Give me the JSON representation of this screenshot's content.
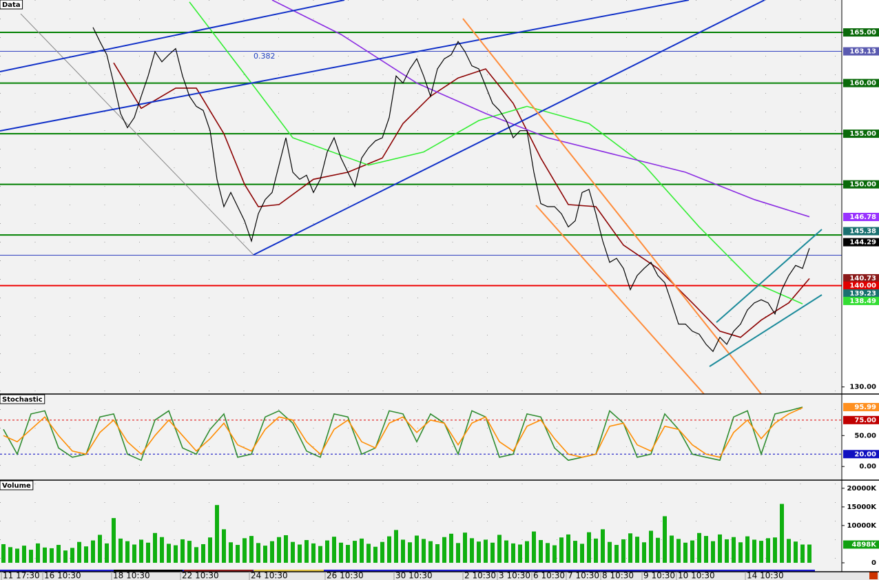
{
  "chart_data": [
    {
      "type": "line",
      "title": "Data",
      "fib_label": "0.382",
      "categories": [
        "11 17:30",
        null,
        null,
        null,
        null,
        null,
        "16 10:30",
        null,
        null,
        null,
        null,
        null,
        null,
        null,
        null,
        null,
        "18 10:30",
        null,
        null,
        null,
        null,
        null,
        null,
        null,
        null,
        null,
        "22 10:30",
        null,
        null,
        null,
        null,
        null,
        null,
        null,
        null,
        null,
        "24 10:30",
        null,
        null,
        null,
        null,
        null,
        null,
        null,
        null,
        null,
        null,
        "26 10:30",
        null,
        null,
        null,
        null,
        null,
        null,
        null,
        null,
        null,
        "30 10:30",
        null,
        null,
        null,
        null,
        null,
        null,
        null,
        null,
        null,
        "2 10:30",
        null,
        null,
        null,
        null,
        "3 10:30",
        null,
        null,
        null,
        null,
        "6 10:30",
        null,
        null,
        null,
        null,
        "7 10:30",
        null,
        null,
        null,
        null,
        "8 10:30",
        null,
        null,
        null,
        null,
        null,
        "9 10:30",
        null,
        null,
        null,
        null,
        "10 10:30",
        null,
        null,
        null,
        null,
        null,
        null,
        null,
        null,
        null,
        "14 10:30",
        null,
        null,
        null,
        null,
        null,
        null,
        null,
        null,
        null
      ],
      "ylim": [
        129.3,
        168.2
      ],
      "yticks": [
        {
          "value": 165,
          "label": "165.00"
        },
        {
          "value": 160,
          "label": "160.00"
        },
        {
          "value": 155,
          "label": "155.00"
        },
        {
          "value": 150,
          "label": "150.00"
        },
        {
          "value": 130,
          "label": "130.00"
        }
      ],
      "series": [
        {
          "color": "#000000",
          "values": [
            null,
            null,
            null,
            null,
            null,
            null,
            null,
            null,
            null,
            null,
            null,
            null,
            null,
            165.5,
            164.1,
            162.8,
            160.0,
            157.0,
            155.6,
            156.6,
            158.7,
            160.7,
            163.1,
            162.1,
            162.8,
            163.4,
            160.7,
            158.7,
            157.7,
            157.3,
            155.3,
            150.5,
            147.8,
            149.2,
            147.8,
            146.4,
            144.4,
            147.1,
            148.5,
            149.2,
            151.9,
            154.6,
            151.2,
            150.5,
            150.9,
            149.2,
            150.5,
            153.2,
            154.6,
            152.6,
            151.2,
            149.8,
            152.6,
            153.6,
            154.3,
            154.6,
            156.6,
            160.7,
            160.0,
            161.4,
            162.4,
            160.7,
            158.7,
            161.4,
            162.4,
            162.8,
            164.1,
            163.1,
            161.7,
            161.4,
            159.7,
            158.0,
            157.3,
            156.3,
            154.6,
            155.3,
            155.3,
            151.2,
            148.1,
            147.8,
            147.8,
            147.1,
            145.8,
            146.4,
            149.2,
            149.5,
            147.1,
            144.4,
            142.3,
            142.7,
            141.7,
            139.6,
            141.0,
            141.7,
            142.3,
            141.0,
            140.3,
            138.3,
            136.2,
            136.2,
            135.5,
            135.2,
            134.2,
            133.5,
            134.9,
            134.2,
            135.5,
            136.2,
            137.6,
            138.3,
            138.6,
            138.3,
            137.2,
            139.6,
            141.0,
            142.0,
            141.7,
            143.7
          ]
        },
        {
          "color": "#8b0000",
          "x": [
            16,
            20,
            25,
            28,
            32,
            35,
            37,
            40,
            45,
            50,
            55,
            58,
            62,
            66,
            70,
            74,
            78,
            82,
            86,
            90,
            95,
            100,
            104,
            107,
            110,
            114,
            117
          ],
          "values": [
            162,
            157.5,
            159.5,
            159.5,
            155,
            150,
            147.8,
            148,
            150.5,
            151.2,
            152.6,
            156,
            158.7,
            160.5,
            161.4,
            158,
            152.6,
            148,
            147.8,
            144,
            141.7,
            138.3,
            135.5,
            134.9,
            136.6,
            138.3,
            140.7
          ]
        },
        {
          "color": "#33ee33",
          "x": [
            27,
            36,
            42,
            53,
            61,
            69,
            76,
            85,
            93,
            101,
            109,
            116
          ],
          "values": [
            168,
            160,
            154.6,
            151.9,
            153.2,
            156.3,
            157.7,
            156,
            151.9,
            145.8,
            140.3,
            138.2
          ]
        },
        {
          "color": "#8a2be2",
          "x": [
            39,
            49,
            60,
            70,
            79,
            89,
            99,
            109,
            117
          ],
          "values": [
            168.2,
            164.8,
            160,
            157,
            154.6,
            152.9,
            151.2,
            148.5,
            146.8
          ]
        }
      ],
      "levels": [
        {
          "value": 165,
          "color": "#008000"
        },
        {
          "value": 160,
          "color": "#008000"
        },
        {
          "value": 155,
          "color": "#008000"
        },
        {
          "value": 150,
          "color": "#008000"
        },
        {
          "value": 145,
          "color": "#008000"
        },
        {
          "value": 140,
          "color": "#ee0000"
        },
        {
          "value": 163.13,
          "color": "#3040c0"
        },
        {
          "value": 143,
          "color": "#3040c0"
        }
      ],
      "tags": [
        {
          "value": 163.13,
          "label": "163.13",
          "color": "#5a5ab0"
        },
        {
          "value": 146.78,
          "label": "146.78",
          "color": "#9933ff"
        },
        {
          "value": 145.38,
          "label": "145.38",
          "color": "#1a7070"
        },
        {
          "value": 144.29,
          "label": "144.29",
          "color": "#000000"
        },
        {
          "value": 140.73,
          "label": "140.73",
          "color": "#8b1a1a"
        },
        {
          "value": 140.0,
          "label": "140.00",
          "color": "#e00000"
        },
        {
          "value": 139.23,
          "label": "139.23",
          "color": "#1a7070"
        },
        {
          "value": 138.49,
          "label": "138.49",
          "color": "#33dd33"
        }
      ]
    },
    {
      "type": "line",
      "title": "Stochastic",
      "x": [
        0,
        2,
        4,
        6,
        8,
        10,
        12,
        14,
        16,
        18,
        20,
        22,
        24,
        26,
        28,
        30,
        32,
        34,
        36,
        38,
        40,
        42,
        44,
        46,
        48,
        50,
        52,
        54,
        56,
        58,
        60,
        62,
        64,
        66,
        68,
        70,
        72,
        74,
        76,
        78,
        80,
        82,
        84,
        86,
        88,
        90,
        92,
        94,
        96,
        98,
        100,
        102,
        104,
        106,
        108,
        110,
        112,
        114,
        116
      ],
      "ylim": [
        -22,
        116
      ],
      "yticks": [
        {
          "value": 50,
          "label": "50.00"
        },
        {
          "value": 0,
          "label": "0.00"
        }
      ],
      "series": [
        {
          "color": "#2e8b2e",
          "values": [
            60,
            20,
            85,
            90,
            30,
            15,
            20,
            80,
            85,
            20,
            10,
            75,
            90,
            30,
            20,
            60,
            85,
            15,
            20,
            80,
            90,
            70,
            25,
            15,
            85,
            80,
            20,
            30,
            90,
            85,
            40,
            85,
            70,
            20,
            90,
            80,
            15,
            20,
            85,
            80,
            30,
            10,
            15,
            20,
            90,
            70,
            15,
            20,
            85,
            60,
            20,
            15,
            10,
            80,
            90,
            20,
            85,
            90,
            96
          ]
        },
        {
          "color": "#ff8c00",
          "values": [
            50,
            40,
            60,
            80,
            50,
            25,
            20,
            55,
            75,
            40,
            20,
            50,
            75,
            50,
            25,
            45,
            70,
            35,
            25,
            60,
            80,
            75,
            40,
            20,
            60,
            75,
            40,
            30,
            70,
            80,
            55,
            75,
            70,
            35,
            70,
            80,
            40,
            25,
            65,
            75,
            45,
            20,
            15,
            20,
            65,
            70,
            35,
            25,
            65,
            60,
            35,
            20,
            15,
            55,
            75,
            45,
            70,
            85,
            95
          ]
        }
      ],
      "levels": [
        {
          "value": 75,
          "color": "#e00000"
        },
        {
          "value": 20,
          "color": "#0000c0"
        }
      ],
      "tags": [
        {
          "value": 95.99,
          "label": "95.99",
          "color": "#ff9020"
        },
        {
          "value": 75,
          "label": "75.00",
          "color": "#c00000"
        },
        {
          "value": 20,
          "label": "20.00",
          "color": "#1010c0"
        }
      ]
    },
    {
      "type": "bar",
      "title": "Volume",
      "color": "#10b010",
      "ylim": [
        -2400,
        22000
      ],
      "yticks": [
        {
          "value": 20000,
          "label": "20000K"
        },
        {
          "value": 15000,
          "label": "15000K"
        },
        {
          "value": 10000,
          "label": "10000K"
        },
        0
      ],
      "values": [
        5000,
        4200,
        3800,
        4600,
        3500,
        5200,
        4100,
        3900,
        4800,
        3300,
        4000,
        5600,
        4400,
        6000,
        7500,
        5200,
        12000,
        6500,
        5800,
        4900,
        6200,
        5400,
        8000,
        6900,
        5100,
        4700,
        6300,
        5900,
        4200,
        5000,
        6800,
        15500,
        9000,
        5500,
        4800,
        6600,
        7200,
        5300,
        4600,
        5800,
        6900,
        7400,
        5600,
        4900,
        6100,
        5200,
        4500,
        6000,
        7000,
        5400,
        4800,
        5900,
        6500,
        5100,
        4300,
        5600,
        7100,
        8800,
        6200,
        5500,
        7300,
        6400,
        5800,
        5000,
        6900,
        7800,
        5300,
        8100,
        6600,
        5700,
        6200,
        5400,
        7500,
        6000,
        5200,
        4900,
        5800,
        8400,
        6100,
        5300,
        4700,
        6800,
        7600,
        5900,
        5100,
        8200,
        6500,
        9000,
        5600,
        4800,
        6300,
        7900,
        7000,
        5500,
        8600,
        6700,
        12500,
        7300,
        6400,
        5400,
        6000,
        8000,
        7200,
        5800,
        7600,
        6300,
        6900,
        5500,
        7100,
        6200,
        5900,
        6600,
        6800,
        15800,
        6400,
        5700,
        4900,
        4898
      ],
      "tags": [
        {
          "value": 4898,
          "label": "4898K",
          "color": "#10a010"
        }
      ]
    }
  ]
}
